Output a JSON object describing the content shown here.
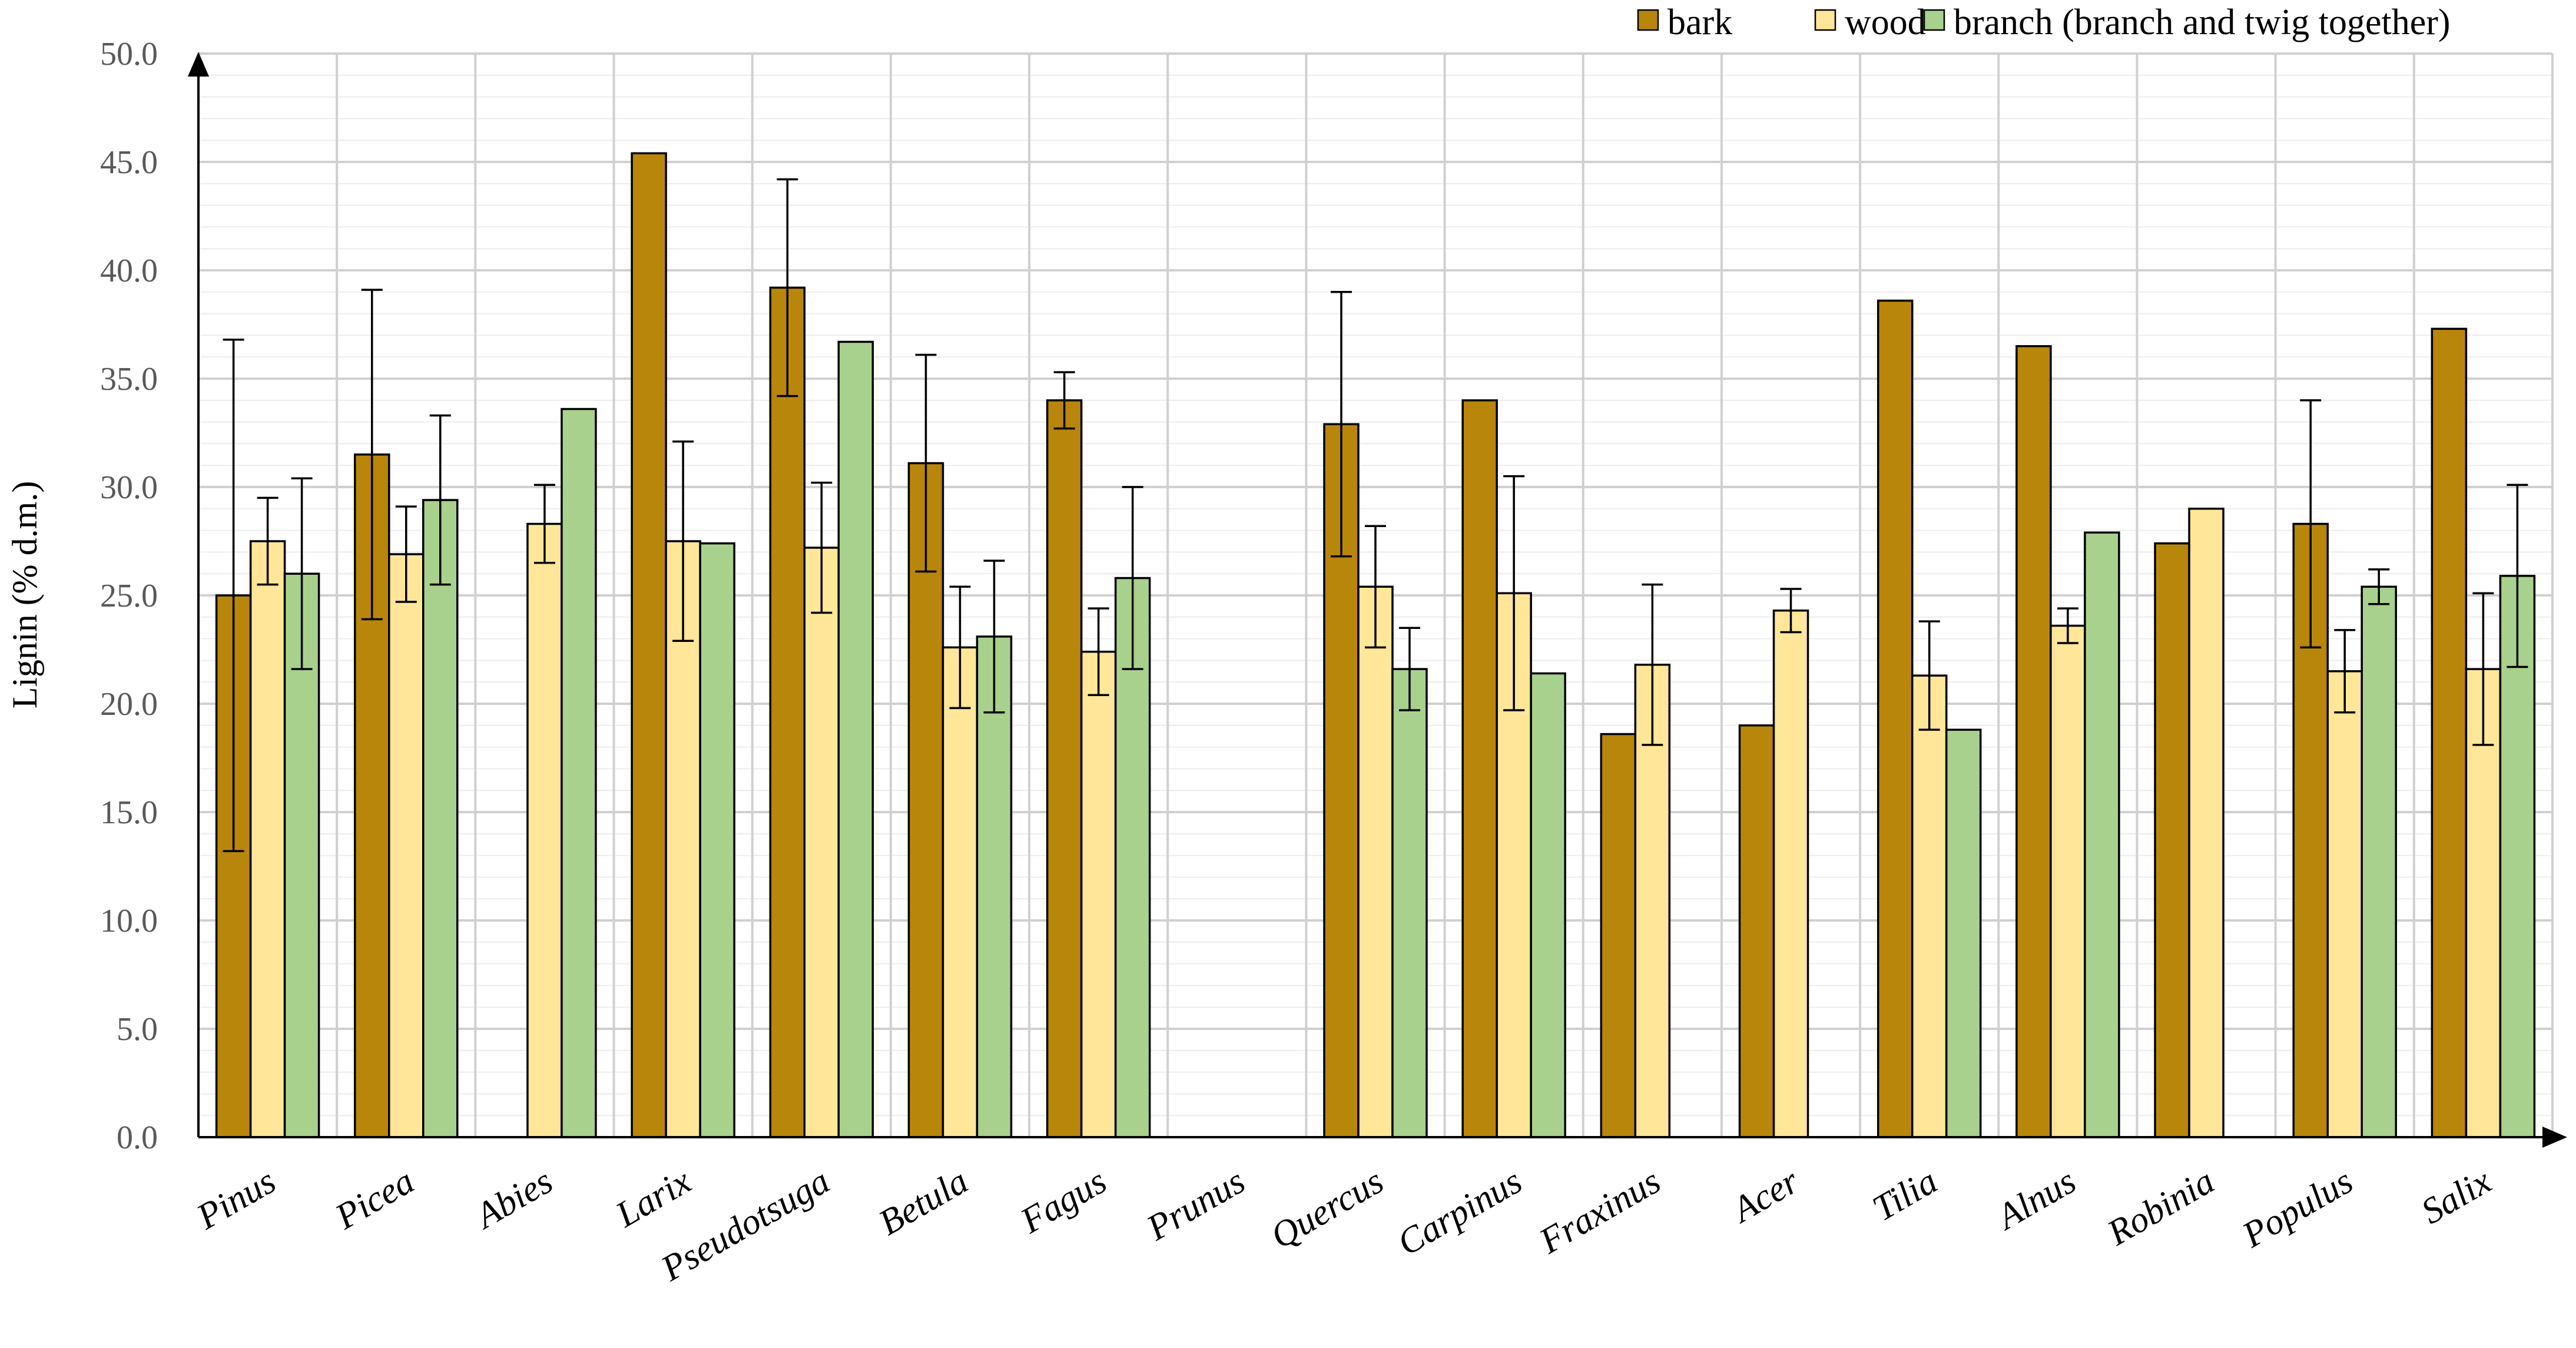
{
  "chart_data": {
    "type": "bar",
    "title": "",
    "xlabel": "",
    "ylabel": "Lignin (% d.m.)",
    "ylim": [
      0,
      50
    ],
    "ytick_step": 5,
    "minor_grid_step": 1,
    "ytick_labels": [
      "0.0",
      "5.0",
      "10.0",
      "15.0",
      "20.0",
      "25.0",
      "30.0",
      "35.0",
      "40.0",
      "45.0",
      "50.0"
    ],
    "legend_position": "top-right",
    "categories": [
      "Pinus",
      "Picea",
      "Abies",
      "Larix",
      "Pseudotsuga",
      "Betula",
      "Fagus",
      "Prunus",
      "Quercus",
      "Carpinus",
      "Fraxinus",
      "Acer",
      "Tilia",
      "Alnus",
      "Robinia",
      "Populus",
      "Salix"
    ],
    "series": [
      {
        "name": "bark",
        "color": "#B8860B",
        "values": [
          25.0,
          31.5,
          null,
          45.4,
          39.2,
          31.1,
          34.0,
          null,
          32.9,
          34.0,
          18.6,
          19.0,
          38.6,
          36.5,
          27.4,
          28.3,
          37.3
        ],
        "errors": [
          11.8,
          7.6,
          null,
          null,
          5.0,
          5.0,
          1.3,
          null,
          6.1,
          null,
          null,
          null,
          null,
          null,
          null,
          5.7,
          null
        ]
      },
      {
        "name": "wood",
        "color": "#FFE699",
        "values": [
          27.5,
          26.9,
          28.3,
          27.5,
          27.2,
          22.6,
          22.4,
          null,
          25.4,
          25.1,
          21.8,
          24.3,
          21.3,
          23.6,
          29.0,
          21.5,
          21.6
        ],
        "errors": [
          2.0,
          2.2,
          1.8,
          4.6,
          3.0,
          2.8,
          2.0,
          null,
          2.8,
          5.4,
          3.7,
          1.0,
          2.5,
          0.8,
          null,
          1.9,
          3.5
        ]
      },
      {
        "name": "branch (branch and twig together)",
        "color": "#A9D18E",
        "values": [
          26.0,
          29.4,
          33.6,
          27.4,
          36.7,
          23.1,
          25.8,
          null,
          21.6,
          21.4,
          null,
          null,
          18.8,
          27.9,
          null,
          25.4,
          25.9
        ],
        "errors": [
          4.4,
          3.9,
          null,
          null,
          null,
          3.5,
          4.2,
          null,
          1.9,
          null,
          null,
          null,
          null,
          null,
          null,
          0.8,
          4.2
        ]
      }
    ]
  }
}
